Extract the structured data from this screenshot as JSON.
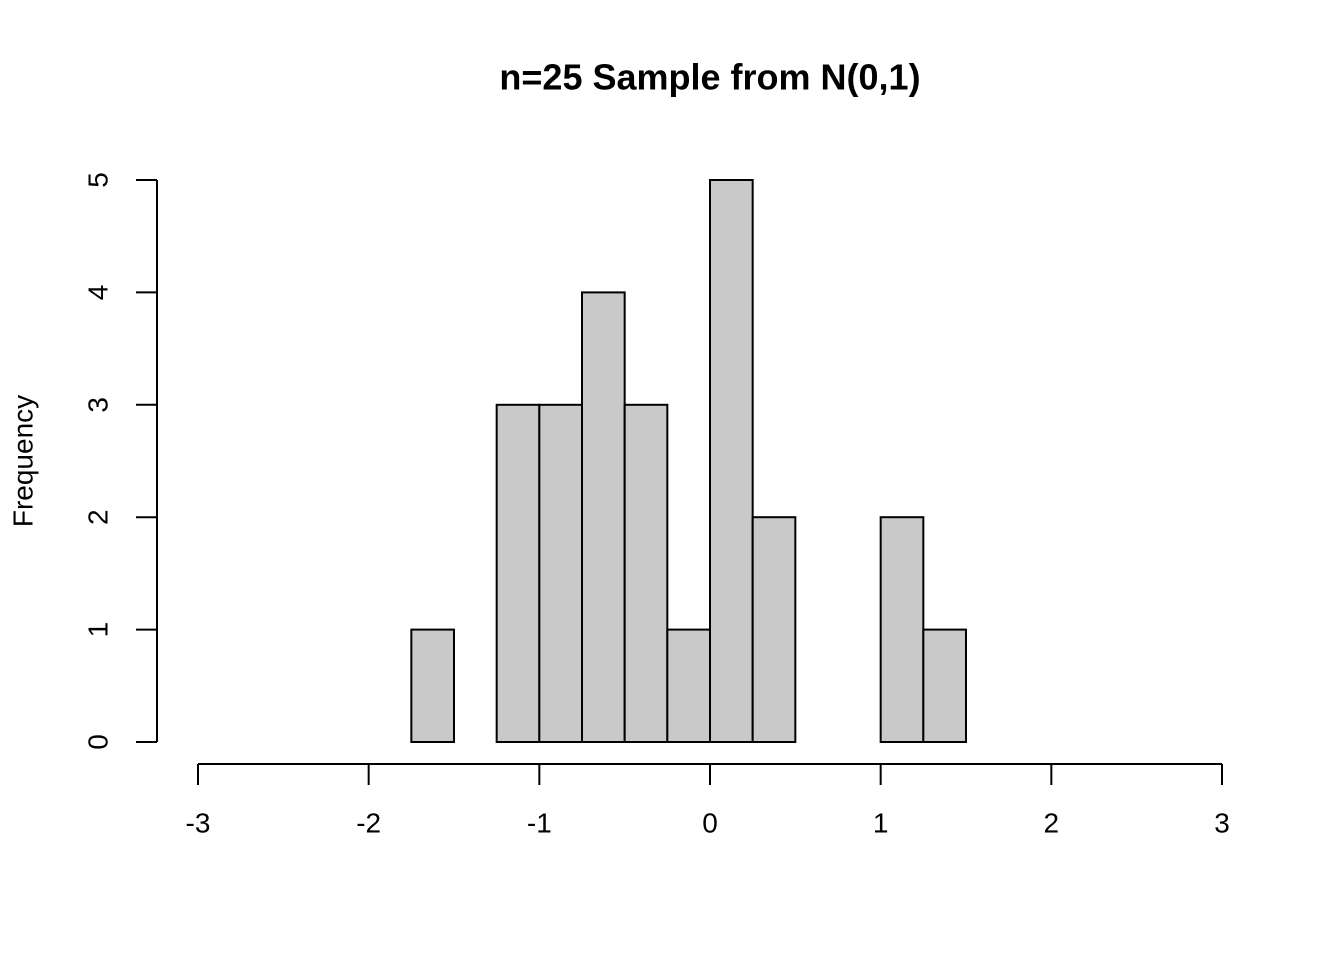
{
  "chart_data": {
    "type": "histogram",
    "title": "n=25 Sample from N(0,1)",
    "y_label": "Frequency",
    "bins": [
      -3,
      -2.75,
      -2.5,
      -2.25,
      -2,
      -1.75,
      -1.5,
      -1.25,
      -1,
      -0.75,
      -0.5,
      -0.25,
      0,
      0.25,
      0.5,
      0.75,
      1,
      1.25,
      1.5,
      1.75,
      2,
      2.25,
      2.5,
      2.75,
      3
    ],
    "counts": [
      0,
      0,
      0,
      0,
      0,
      1,
      0,
      3,
      3,
      4,
      3,
      1,
      5,
      2,
      0,
      0,
      2,
      1,
      0,
      0,
      0,
      0,
      0,
      0
    ],
    "color": "#c9c9c9",
    "xlim": [
      -3,
      3
    ],
    "xticks": [
      -3,
      -2,
      -1,
      0,
      1,
      2,
      3
    ],
    "ylim": [
      0,
      5
    ],
    "yticks": [
      0,
      1,
      2,
      3,
      4,
      5
    ]
  }
}
